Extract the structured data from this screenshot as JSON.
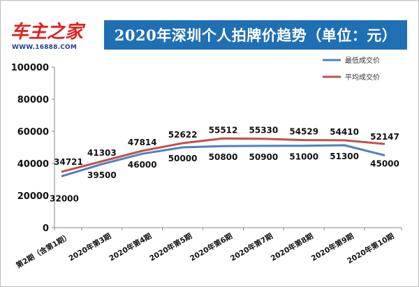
{
  "logo": {
    "brand": "车主之家",
    "url": "WWW.16888.COM"
  },
  "colors": {
    "series_low": "#4f81bd",
    "series_avg": "#c0504d",
    "title_bg": "#1f6fb5",
    "brand_red": "#e02020"
  },
  "chart_data": {
    "type": "line",
    "title": "2020年深圳个人拍牌价趋势（单位：元）",
    "xlabel": "",
    "ylabel": "",
    "categories": [
      "第2期（含第1期）",
      "2020年第3期",
      "2020年第4期",
      "2020年第5期",
      "2020年第6期",
      "2020年第7期",
      "2020年第8期",
      "2020年第9期",
      "2020年第10期"
    ],
    "series": [
      {
        "name": "最低成交价",
        "color": "#4f81bd",
        "values": [
          32000,
          39500,
          46000,
          50000,
          50800,
          50900,
          51000,
          51300,
          45000
        ]
      },
      {
        "name": "平均成交价",
        "color": "#c0504d",
        "values": [
          34721,
          41303,
          47814,
          52622,
          55512,
          55330,
          54529,
          54410,
          52147
        ]
      }
    ],
    "ylim": [
      0,
      100000
    ],
    "yticks": [
      0,
      20000,
      40000,
      60000,
      80000,
      100000
    ],
    "grid": false,
    "legend": "top-right"
  }
}
